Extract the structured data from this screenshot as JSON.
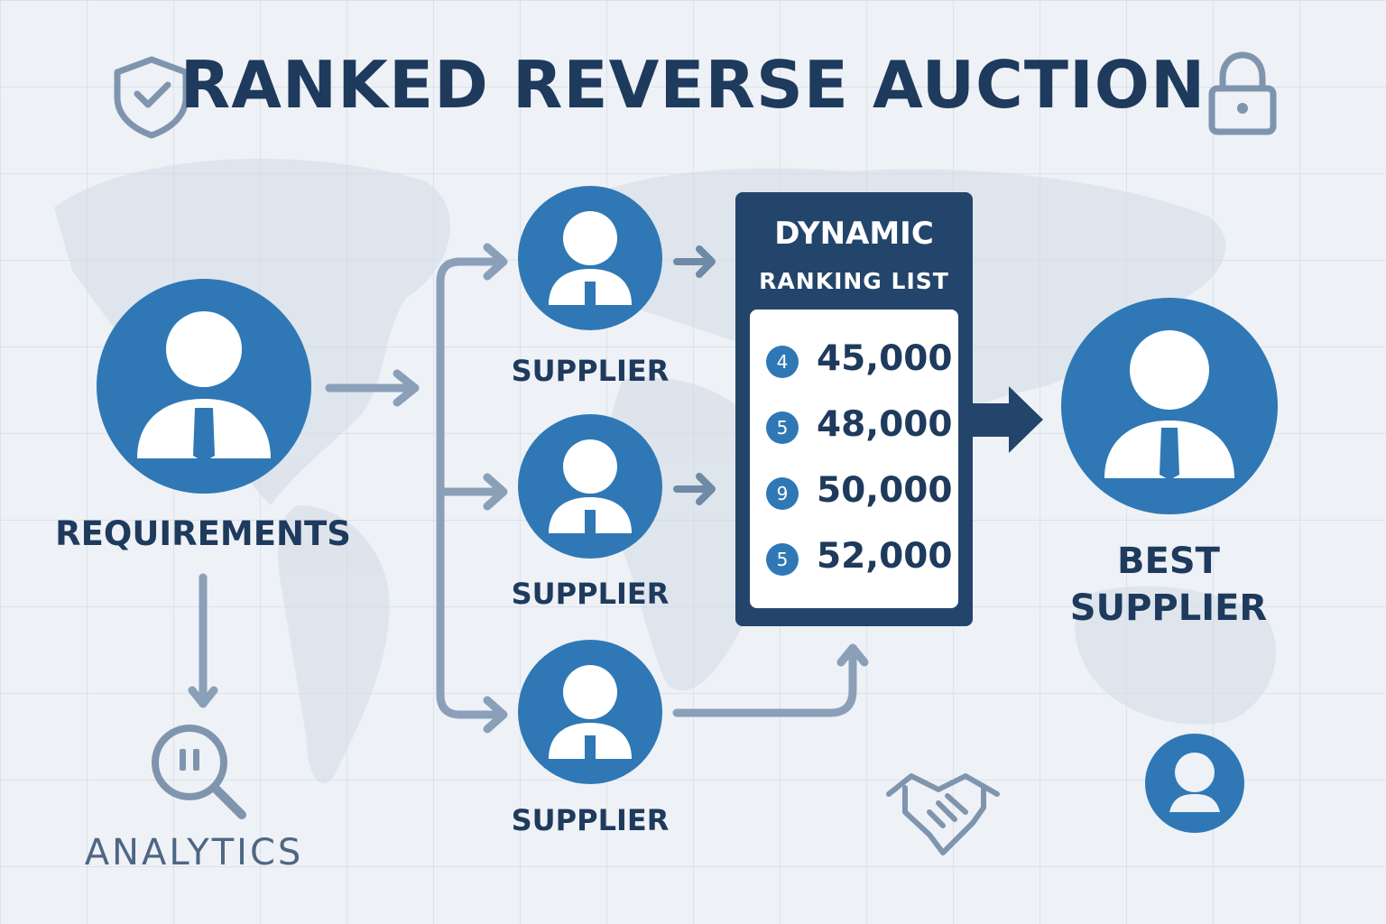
{
  "title": "RANKED REVERSE AUCTION",
  "requirements": {
    "label": "REQUIREMENTS",
    "icon": "user-tie-icon"
  },
  "analytics": {
    "label": "ANALYTICS",
    "icon": "search-analytics-icon"
  },
  "suppliers": [
    {
      "label": "SUPPLIER",
      "icon": "user-tie-icon"
    },
    {
      "label": "SUPPLIER",
      "icon": "user-tie-icon"
    },
    {
      "label": "SUPPLIER",
      "icon": "user-tie-icon"
    }
  ],
  "ranking_panel": {
    "title_line1": "DYNAMIC",
    "title_line2": "RANKING LIST",
    "entries": [
      {
        "rank": "4",
        "value": "45,000"
      },
      {
        "rank": "5",
        "value": "48,000"
      },
      {
        "rank": "9",
        "value": "50,000"
      },
      {
        "rank": "5",
        "value": "52,000"
      }
    ]
  },
  "best_supplier": {
    "label_line1": "BEST",
    "label_line2": "SUPPLIER",
    "icon": "user-tie-icon"
  },
  "decor_icons": [
    "shield-check-icon",
    "lock-icon",
    "handshake-icon",
    "user-icon"
  ],
  "colors": {
    "accent_blue": "#2f78b5",
    "navy": "#23456b",
    "text_dark": "#1e3a5c",
    "arrow_gray": "#8aa0b8",
    "background": "#eef1f6"
  }
}
